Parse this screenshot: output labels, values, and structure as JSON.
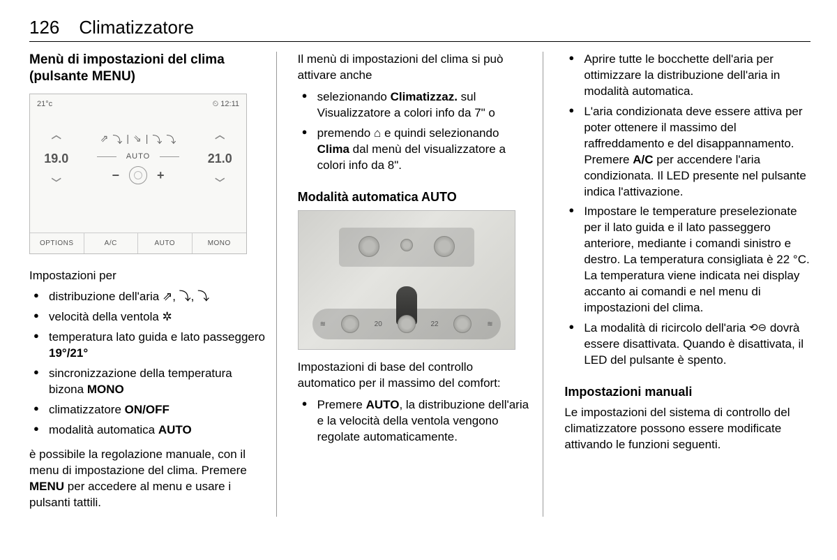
{
  "header": {
    "page_number": "126",
    "chapter": "Climatizzatore"
  },
  "col1": {
    "heading": "Menù di impostazioni del clima (pulsante MENU)",
    "screen": {
      "temp_unit": "21°c",
      "clock_icon": "⏲",
      "time": "12:11",
      "left_temp": "19.0",
      "right_temp": "21.0",
      "auto_label": "AUTO",
      "minus": "−",
      "plus": "+",
      "air_icons": [
        "⇗",
        "⤵",
        "⇘",
        "⤵",
        "⤵"
      ],
      "tabs": [
        "OPTIONS",
        "A/C",
        "AUTO",
        "MONO"
      ]
    },
    "settings_label": "Impostazioni per",
    "bullets": [
      {
        "text_before": "distribuzione dell'aria ",
        "icons": "⇗, ⤵, ⤵"
      },
      {
        "text_before": "velocità della ventola ",
        "icons": "✲"
      },
      {
        "text_before": "temperatura lato guida e lato passeggero ",
        "bold": "19°/21°"
      },
      {
        "text_before": "sincronizzazione della temperatura bizona ",
        "bold": "MONO"
      },
      {
        "text_before": "climatizzatore ",
        "bold": "ON/OFF"
      },
      {
        "text_before": "modalità automatica ",
        "bold": "AUTO"
      }
    ],
    "para_after_a": "è possibile la regolazione manuale, con il menu di impostazione del clima. Premere ",
    "para_after_bold": "MENU",
    "para_after_b": " per accedere al menu e usare i pulsanti tattili."
  },
  "col2": {
    "intro": "Il menù di impostazioni del clima si può attivare anche",
    "bullets1": [
      {
        "a": "selezionando ",
        "b": "Climatizzaz.",
        "c": " sul Visualizzatore a colori info da 7\" o"
      },
      {
        "a": "premendo ",
        "icon": "⌂",
        "c": " e quindi selezionando ",
        "b2": "Clima",
        "d": " dal menù del visualizzatore a colori info da 8\"."
      }
    ],
    "heading2": "Modalità automatica AUTO",
    "photo": {
      "disp_left": "20",
      "disp_right": "22"
    },
    "para2": "Impostazioni di base del controllo automatico per il massimo del comfort:",
    "bullets2": [
      {
        "a": "Premere ",
        "b": "AUTO",
        "c": ", la distribuzione dell'aria e la velocità della ventola vengono regolate automaticamente."
      }
    ]
  },
  "col3": {
    "bullets": [
      {
        "text": "Aprire tutte le bocchette dell'aria per ottimizzare la distribuzione dell'aria in modalità automatica."
      },
      {
        "a": "L'aria condizionata deve essere attiva per poter ottenere il massimo del raffreddamento e del disappannamento. Premere ",
        "b": "A/C",
        "c": " per accendere l'aria condizionata. Il LED presente nel pulsante indica l'attivazione."
      },
      {
        "text": "Impostare le temperature preselezionate per il lato guida e il lato passeggero anteriore, mediante i comandi sinistro e destro. La temperatura consigliata è 22 °C. La temperatura viene indicata nei display accanto ai comandi e nel menu di impostazioni del clima."
      },
      {
        "a": "La modalità di ricircolo dell'aria ",
        "icon": "⟲⊖",
        "c": " dovrà essere disattivata. Quando è disattivata, il LED del pulsante è spento."
      }
    ],
    "heading": "Impostazioni manuali",
    "para": "Le impostazioni del sistema di controllo del climatizzatore possono essere modificate attivando le funzioni seguenti."
  }
}
